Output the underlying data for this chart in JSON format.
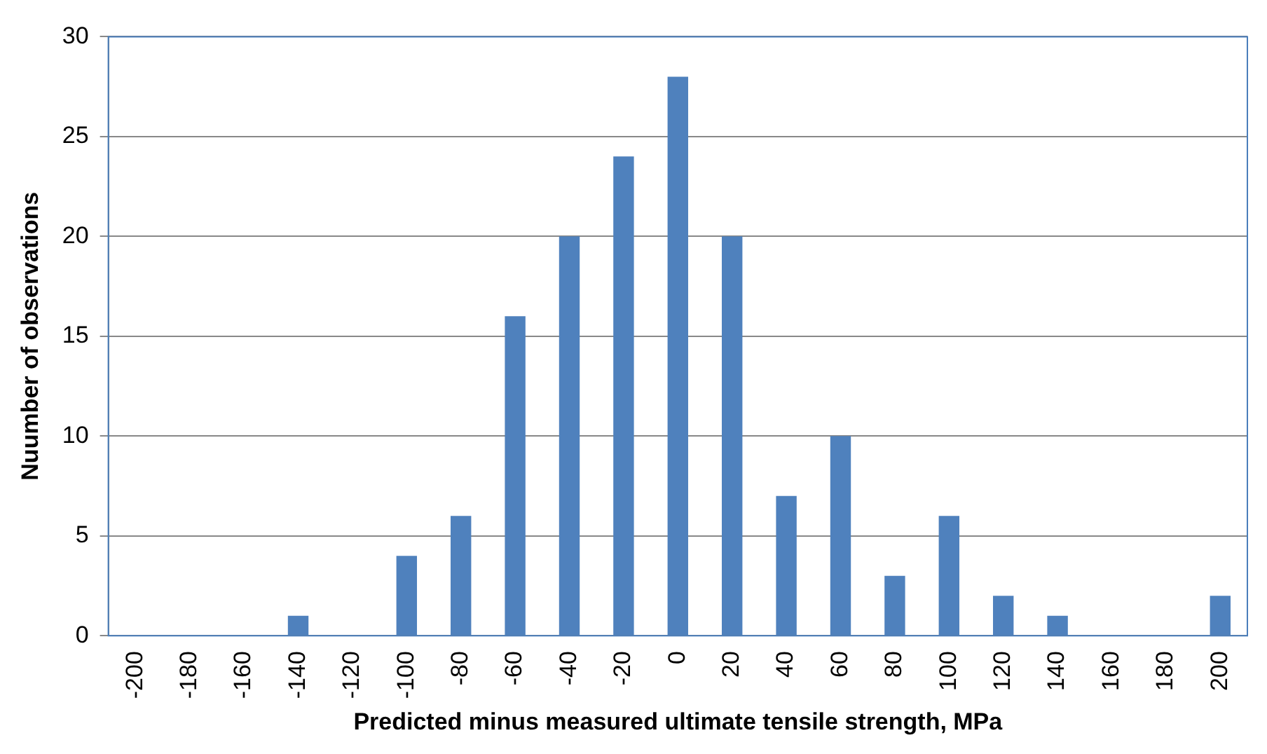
{
  "chart_data": {
    "type": "bar",
    "xlabel": "Predicted minus measured ultimate tensile strength, MPa",
    "ylabel": "Nuumber of observations",
    "categories": [
      "-200",
      "-180",
      "-160",
      "-140",
      "-120",
      "-100",
      "-80",
      "-60",
      "-40",
      "-20",
      "0",
      "20",
      "40",
      "60",
      "80",
      "100",
      "120",
      "140",
      "160",
      "180",
      "200"
    ],
    "values": [
      0,
      0,
      0,
      1,
      0,
      4,
      6,
      16,
      20,
      24,
      28,
      20,
      7,
      10,
      3,
      6,
      2,
      1,
      0,
      0,
      2
    ],
    "color": "#4f81bd",
    "ylim": [
      0,
      30
    ],
    "yticks": [
      0,
      5,
      10,
      15,
      20,
      25,
      30
    ],
    "grid": "y",
    "legend": false
  }
}
